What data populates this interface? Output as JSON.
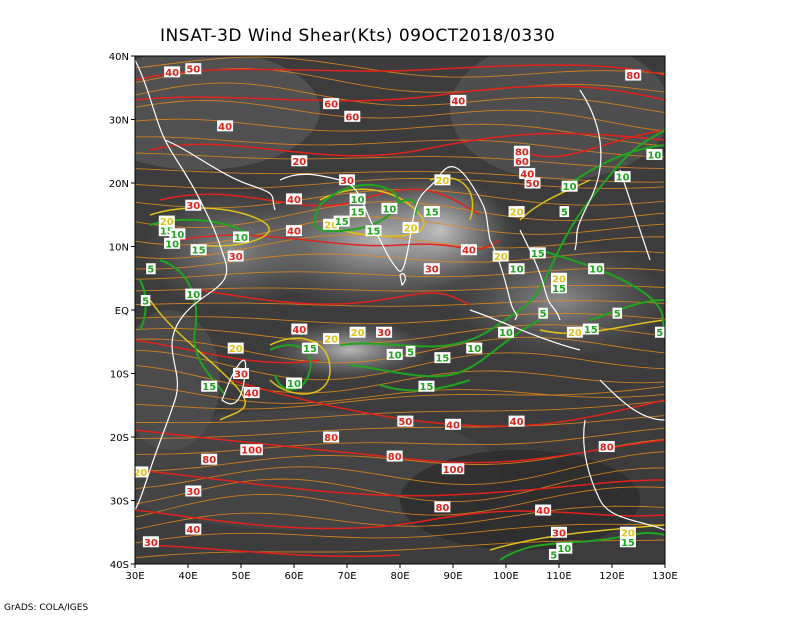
{
  "title": "INSAT-3D Wind Shear(Kts) 09OCT2018/0330",
  "footer": "GrADS: COLA/IGES",
  "colors": {
    "streamline": "#e88a1a",
    "contour_red": "#e2221b",
    "contour_green": "#1fa51f",
    "contour_yellow": "#e0c21a",
    "coast": "#ffffff",
    "background": "#3a3a3a"
  },
  "map": {
    "lon_range": [
      30,
      130
    ],
    "lat_range": [
      -40,
      40
    ],
    "lat_ticks": [
      {
        "value": 40,
        "label": "40N"
      },
      {
        "value": 30,
        "label": "30N"
      },
      {
        "value": 20,
        "label": "20N"
      },
      {
        "value": 10,
        "label": "10N"
      },
      {
        "value": 0,
        "label": "EQ"
      },
      {
        "value": -10,
        "label": "10S"
      },
      {
        "value": -20,
        "label": "20S"
      },
      {
        "value": -30,
        "label": "30S"
      },
      {
        "value": -40,
        "label": "40S"
      }
    ],
    "lon_ticks": [
      {
        "value": 30,
        "label": "30E"
      },
      {
        "value": 40,
        "label": "40E"
      },
      {
        "value": 50,
        "label": "50E"
      },
      {
        "value": 60,
        "label": "60E"
      },
      {
        "value": 70,
        "label": "70E"
      },
      {
        "value": 80,
        "label": "80E"
      },
      {
        "value": 90,
        "label": "90E"
      },
      {
        "value": 100,
        "label": "100E"
      },
      {
        "value": 110,
        "label": "110E"
      },
      {
        "value": 120,
        "label": "120E"
      },
      {
        "value": 130,
        "label": "130E"
      }
    ]
  },
  "contour_labels": [
    {
      "text": "40",
      "lon": 37,
      "lat": 37.5,
      "color": "red"
    },
    {
      "text": "50",
      "lon": 41,
      "lat": 38,
      "color": "red"
    },
    {
      "text": "60",
      "lon": 67,
      "lat": 32.5,
      "color": "red"
    },
    {
      "text": "60",
      "lon": 71,
      "lat": 30.5,
      "color": "red"
    },
    {
      "text": "40",
      "lon": 91,
      "lat": 33,
      "color": "red"
    },
    {
      "text": "80",
      "lon": 124,
      "lat": 37,
      "color": "red"
    },
    {
      "text": "40",
      "lon": 47,
      "lat": 29,
      "color": "red"
    },
    {
      "text": "20",
      "lon": 61,
      "lat": 23.5,
      "color": "red"
    },
    {
      "text": "30",
      "lon": 70,
      "lat": 20.5,
      "color": "red"
    },
    {
      "text": "80",
      "lon": 103,
      "lat": 25,
      "color": "red"
    },
    {
      "text": "60",
      "lon": 103,
      "lat": 23.5,
      "color": "red"
    },
    {
      "text": "40",
      "lon": 104,
      "lat": 21.5,
      "color": "red"
    },
    {
      "text": "50",
      "lon": 105,
      "lat": 20,
      "color": "red"
    },
    {
      "text": "40",
      "lon": 60,
      "lat": 17.5,
      "color": "red"
    },
    {
      "text": "30",
      "lon": 41,
      "lat": 16.5,
      "color": "red"
    },
    {
      "text": "40",
      "lon": 60,
      "lat": 12.5,
      "color": "red"
    },
    {
      "text": "30",
      "lon": 49,
      "lat": 8.5,
      "color": "red"
    },
    {
      "text": "40",
      "lon": 93,
      "lat": 9.5,
      "color": "red"
    },
    {
      "text": "30",
      "lon": 86,
      "lat": 6.5,
      "color": "red"
    },
    {
      "text": "40",
      "lon": 61,
      "lat": -3,
      "color": "red"
    },
    {
      "text": "30",
      "lon": 77,
      "lat": -3.5,
      "color": "red"
    },
    {
      "text": "30",
      "lon": 50,
      "lat": -10,
      "color": "red"
    },
    {
      "text": "40",
      "lon": 52,
      "lat": -13,
      "color": "red"
    },
    {
      "text": "50",
      "lon": 81,
      "lat": -17.5,
      "color": "red"
    },
    {
      "text": "40",
      "lon": 90,
      "lat": -18,
      "color": "red"
    },
    {
      "text": "40",
      "lon": 102,
      "lat": -17.5,
      "color": "red"
    },
    {
      "text": "80",
      "lon": 67,
      "lat": -20,
      "color": "red"
    },
    {
      "text": "80",
      "lon": 119,
      "lat": -21.5,
      "color": "red"
    },
    {
      "text": "100",
      "lon": 52,
      "lat": -22,
      "color": "red"
    },
    {
      "text": "80",
      "lon": 79,
      "lat": -23,
      "color": "red"
    },
    {
      "text": "80",
      "lon": 44,
      "lat": -23.5,
      "color": "red"
    },
    {
      "text": "100",
      "lon": 90,
      "lat": -25,
      "color": "red"
    },
    {
      "text": "30",
      "lon": 41,
      "lat": -28.5,
      "color": "red"
    },
    {
      "text": "80",
      "lon": 88,
      "lat": -31,
      "color": "red"
    },
    {
      "text": "40",
      "lon": 107,
      "lat": -31.5,
      "color": "red"
    },
    {
      "text": "40",
      "lon": 41,
      "lat": -34.5,
      "color": "red"
    },
    {
      "text": "30",
      "lon": 110,
      "lat": -35,
      "color": "red"
    },
    {
      "text": "30",
      "lon": 33,
      "lat": -36.5,
      "color": "red"
    },
    {
      "text": "20",
      "lon": 88,
      "lat": 20.5,
      "color": "yellow"
    },
    {
      "text": "20",
      "lon": 102,
      "lat": 15.5,
      "color": "yellow"
    },
    {
      "text": "20",
      "lon": 36,
      "lat": 14,
      "color": "yellow"
    },
    {
      "text": "20",
      "lon": 67,
      "lat": 13.5,
      "color": "yellow"
    },
    {
      "text": "20",
      "lon": 82,
      "lat": 13,
      "color": "yellow"
    },
    {
      "text": "20",
      "lon": 99,
      "lat": 8.5,
      "color": "yellow"
    },
    {
      "text": "20",
      "lon": 110,
      "lat": 5,
      "color": "yellow"
    },
    {
      "text": "20",
      "lon": 72,
      "lat": -3.5,
      "color": "yellow"
    },
    {
      "text": "20",
      "lon": 67,
      "lat": -4.5,
      "color": "yellow"
    },
    {
      "text": "20",
      "lon": 113,
      "lat": -3.5,
      "color": "yellow"
    },
    {
      "text": "20",
      "lon": 49,
      "lat": -6,
      "color": "yellow"
    },
    {
      "text": "20",
      "lon": 31,
      "lat": -25.5,
      "color": "yellow"
    },
    {
      "text": "20",
      "lon": 123,
      "lat": -35,
      "color": "yellow"
    },
    {
      "text": "10",
      "lon": 72,
      "lat": 17.5,
      "color": "green"
    },
    {
      "text": "10",
      "lon": 78,
      "lat": 16,
      "color": "green"
    },
    {
      "text": "15",
      "lon": 72,
      "lat": 15.5,
      "color": "green"
    },
    {
      "text": "15",
      "lon": 69,
      "lat": 14,
      "color": "green"
    },
    {
      "text": "15",
      "lon": 86,
      "lat": 15.5,
      "color": "green"
    },
    {
      "text": "15",
      "lon": 75,
      "lat": 12.5,
      "color": "green"
    },
    {
      "text": "10",
      "lon": 112,
      "lat": 19.5,
      "color": "green"
    },
    {
      "text": "10",
      "lon": 122,
      "lat": 21,
      "color": "green"
    },
    {
      "text": "10",
      "lon": 128,
      "lat": 24.5,
      "color": "green"
    },
    {
      "text": "5",
      "lon": 111,
      "lat": 15.5,
      "color": "green"
    },
    {
      "text": "15",
      "lon": 36,
      "lat": 12.5,
      "color": "green"
    },
    {
      "text": "10",
      "lon": 38,
      "lat": 12,
      "color": "green"
    },
    {
      "text": "10",
      "lon": 37,
      "lat": 10.5,
      "color": "green"
    },
    {
      "text": "10",
      "lon": 50,
      "lat": 11.5,
      "color": "green"
    },
    {
      "text": "15",
      "lon": 42,
      "lat": 9.5,
      "color": "green"
    },
    {
      "text": "15",
      "lon": 106,
      "lat": 9,
      "color": "green"
    },
    {
      "text": "5",
      "lon": 33,
      "lat": 6.5,
      "color": "green"
    },
    {
      "text": "10",
      "lon": 102,
      "lat": 6.5,
      "color": "green"
    },
    {
      "text": "10",
      "lon": 117,
      "lat": 6.5,
      "color": "green"
    },
    {
      "text": "15",
      "lon": 110,
      "lat": 3.5,
      "color": "green"
    },
    {
      "text": "10",
      "lon": 41,
      "lat": 2.5,
      "color": "green"
    },
    {
      "text": "5",
      "lon": 32,
      "lat": 1.5,
      "color": "green"
    },
    {
      "text": "5",
      "lon": 107,
      "lat": -0.5,
      "color": "green"
    },
    {
      "text": "5",
      "lon": 121,
      "lat": -0.5,
      "color": "green"
    },
    {
      "text": "15",
      "lon": 116,
      "lat": -3,
      "color": "green"
    },
    {
      "text": "10",
      "lon": 100,
      "lat": -3.5,
      "color": "green"
    },
    {
      "text": "5",
      "lon": 129,
      "lat": -3.5,
      "color": "green"
    },
    {
      "text": "15",
      "lon": 63,
      "lat": -6,
      "color": "green"
    },
    {
      "text": "10",
      "lon": 94,
      "lat": -6,
      "color": "green"
    },
    {
      "text": "10",
      "lon": 79,
      "lat": -7,
      "color": "green"
    },
    {
      "text": "5",
      "lon": 82,
      "lat": -6.5,
      "color": "green"
    },
    {
      "text": "15",
      "lon": 88,
      "lat": -7.5,
      "color": "green"
    },
    {
      "text": "10",
      "lon": 60,
      "lat": -11.5,
      "color": "green"
    },
    {
      "text": "15",
      "lon": 44,
      "lat": -12,
      "color": "green"
    },
    {
      "text": "15",
      "lon": 85,
      "lat": -12,
      "color": "green"
    },
    {
      "text": "10",
      "lon": 111,
      "lat": -37.5,
      "color": "green"
    },
    {
      "text": "15",
      "lon": 123,
      "lat": -36.5,
      "color": "green"
    },
    {
      "text": "5",
      "lon": 109,
      "lat": -38.5,
      "color": "green"
    }
  ]
}
